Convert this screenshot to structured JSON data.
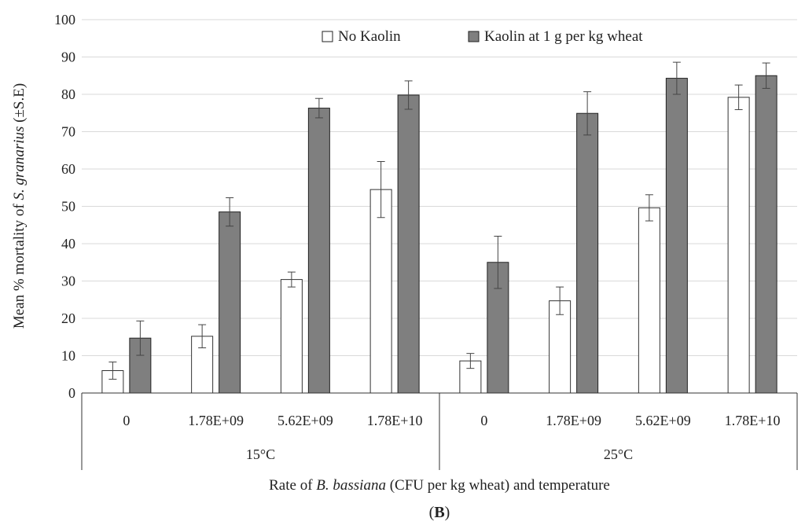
{
  "chart_data": {
    "type": "bar",
    "panel_label": "(B)",
    "ylabel_parts": [
      "Mean % mortality of ",
      "S. granarius",
      " (±S.E)"
    ],
    "xlabel_parts": [
      "Rate of ",
      "B. bassiana",
      " (CFU per kg wheat) and temperature"
    ],
    "ylim": [
      0,
      100
    ],
    "yticks": [
      0,
      10,
      20,
      30,
      40,
      50,
      60,
      70,
      80,
      90,
      100
    ],
    "grid": true,
    "legend_position": "top",
    "groups": [
      {
        "label": "15°C",
        "categories": [
          "0",
          "1.78E+09",
          "5.62E+09",
          "1.78E+10"
        ]
      },
      {
        "label": "25°C",
        "categories": [
          "0",
          "1.78E+09",
          "5.62E+09",
          "1.78E+10"
        ]
      }
    ],
    "series": [
      {
        "name": "No Kaolin",
        "color": "#ffffff",
        "values": [
          6,
          15.2,
          30.4,
          54.5,
          8.6,
          24.7,
          49.6,
          79.2
        ],
        "errors": [
          2.3,
          3.1,
          2.0,
          7.5,
          2.0,
          3.7,
          3.5,
          3.3
        ]
      },
      {
        "name": "Kaolin at 1 g per kg wheat",
        "color": "#7f7f7f",
        "values": [
          14.7,
          48.5,
          76.3,
          79.8,
          35,
          74.9,
          84.3,
          85
        ],
        "errors": [
          4.6,
          3.8,
          2.6,
          3.8,
          7.0,
          5.8,
          4.3,
          3.4
        ]
      }
    ]
  }
}
